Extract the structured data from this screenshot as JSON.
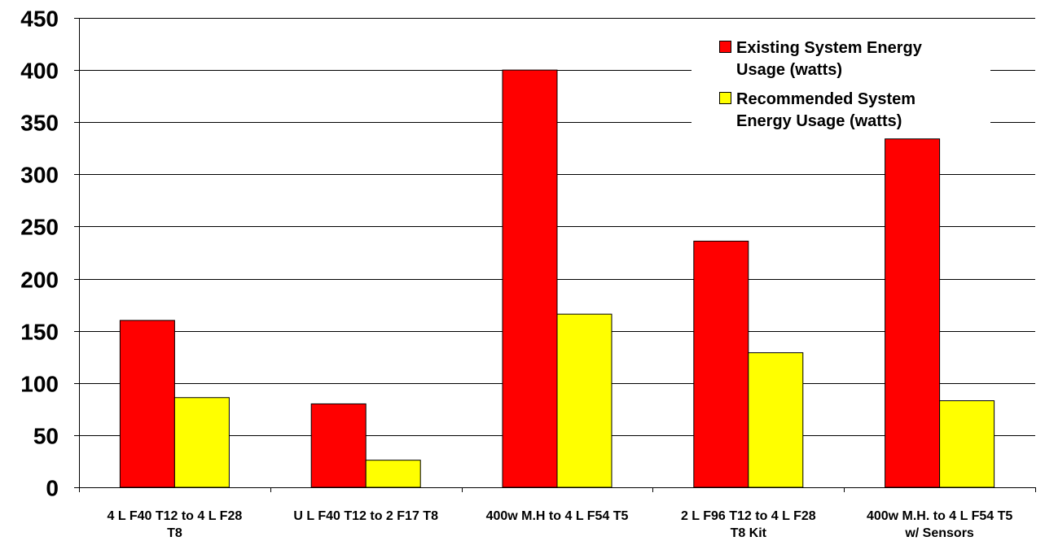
{
  "chart_data": {
    "type": "bar",
    "title": "",
    "xlabel": "",
    "ylabel": "",
    "ylim": [
      0,
      450
    ],
    "yticks": [
      0,
      50,
      100,
      150,
      200,
      250,
      300,
      350,
      400,
      450
    ],
    "grid": true,
    "legend_position": "top-right",
    "categories": [
      [
        "4 L F40 T12 to 4 L F28",
        "T8"
      ],
      [
        "U L F40 T12 to 2 F17 T8"
      ],
      [
        "400w M.H to 4 L F54 T5"
      ],
      [
        "2 L F96 T12 to 4 L F28",
        "T8 Kit"
      ],
      [
        "400w M.H. to 4 L F54 T5",
        "w/ Sensors"
      ]
    ],
    "series": [
      {
        "name": [
          "Existing System Energy",
          "Usage (watts)"
        ],
        "color": "#ff0000",
        "values": [
          160,
          80,
          400,
          236,
          334
        ]
      },
      {
        "name": [
          "Recommended System",
          "Energy Usage (watts)"
        ],
        "color": "#ffff00",
        "values": [
          86,
          26,
          166,
          129,
          83
        ]
      }
    ]
  }
}
